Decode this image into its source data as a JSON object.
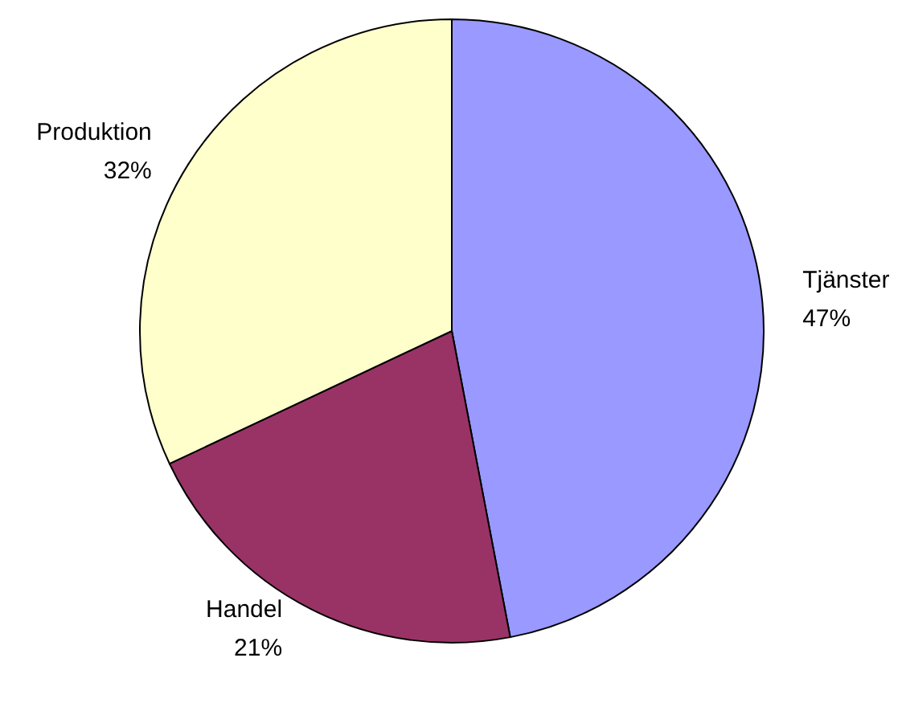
{
  "chart_data": {
    "type": "pie",
    "categories": [
      "Tjänster",
      "Handel",
      "Produktion"
    ],
    "values": [
      47,
      21,
      32
    ],
    "colors": [
      "#9999ff",
      "#993366",
      "#ffffcc"
    ],
    "value_labels": [
      "47%",
      "21%",
      "32%"
    ]
  }
}
